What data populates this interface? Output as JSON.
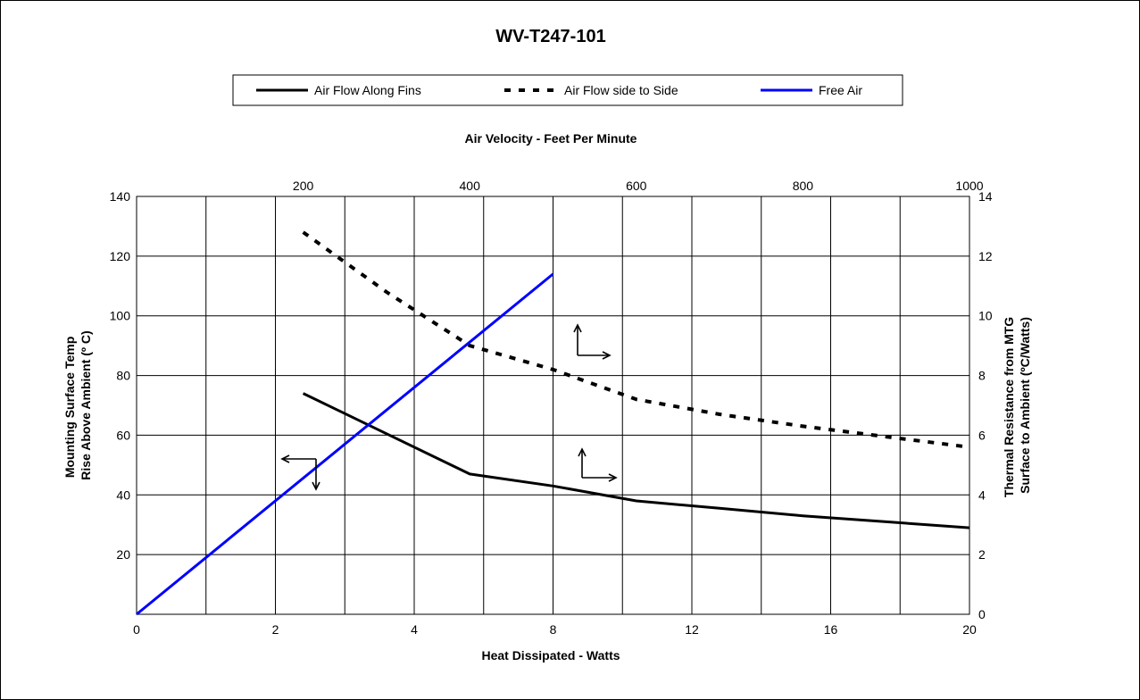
{
  "chart_data": {
    "type": "line",
    "title": "WV-T247-101",
    "xlabel_bottom": "Heat Dissipated - Watts",
    "xlabel_top": "Air Velocity - Feet Per Minute",
    "ylabel_left": [
      "Mounting Surface Temp",
      "Rise Above Ambient (º C)"
    ],
    "ylabel_right": [
      "Thermal Resistance from MTG",
      "Surface to Ambient (ºC/Watts)"
    ],
    "x_bottom_ticks": [
      "0",
      "2",
      "4",
      "8",
      "12",
      "16",
      "20"
    ],
    "x_top_ticks": [
      "200",
      "400",
      "600",
      "800",
      "1000"
    ],
    "y_left_ticks": [
      "20",
      "40",
      "60",
      "80",
      "100",
      "120",
      "140"
    ],
    "y_right_ticks": [
      "0",
      "2",
      "4",
      "6",
      "8",
      "10",
      "12",
      "14"
    ],
    "ylim_left": [
      0,
      140
    ],
    "ylim_right": [
      0,
      14
    ],
    "xlim_top": [
      0,
      1000
    ],
    "grid": true,
    "legend_position": "top",
    "series": [
      {
        "name": "Air Flow Along Fins",
        "axis": "top-right",
        "style": "solid",
        "color": "#000000",
        "x": [
          200,
          400,
          500,
          600,
          700,
          800,
          900,
          1000
        ],
        "y": [
          7.4,
          4.7,
          4.3,
          3.8,
          3.55,
          3.3,
          3.1,
          2.9
        ]
      },
      {
        "name": "Air Flow side to Side",
        "axis": "top-right",
        "style": "dashed",
        "color": "#000000",
        "x": [
          200,
          300,
          400,
          500,
          600,
          700,
          800,
          900,
          1000
        ],
        "y": [
          12.8,
          10.8,
          9.0,
          8.2,
          7.2,
          6.7,
          6.3,
          5.95,
          5.6
        ]
      },
      {
        "name": "Free Air",
        "axis": "bottom-left",
        "style": "solid",
        "color": "#0000ff",
        "x": [
          0,
          8
        ],
        "y": [
          0,
          114
        ]
      }
    ],
    "annotations": [
      {
        "type": "axis-indicator",
        "pointing": [
          "left",
          "down"
        ],
        "meaning": "Free Air uses bottom and left axes"
      },
      {
        "type": "axis-indicator",
        "pointing": [
          "up",
          "right"
        ],
        "meaning": "dashed series uses top and right axes"
      },
      {
        "type": "axis-indicator",
        "pointing": [
          "up",
          "right"
        ],
        "meaning": "solid black series uses top and right axes"
      }
    ]
  }
}
